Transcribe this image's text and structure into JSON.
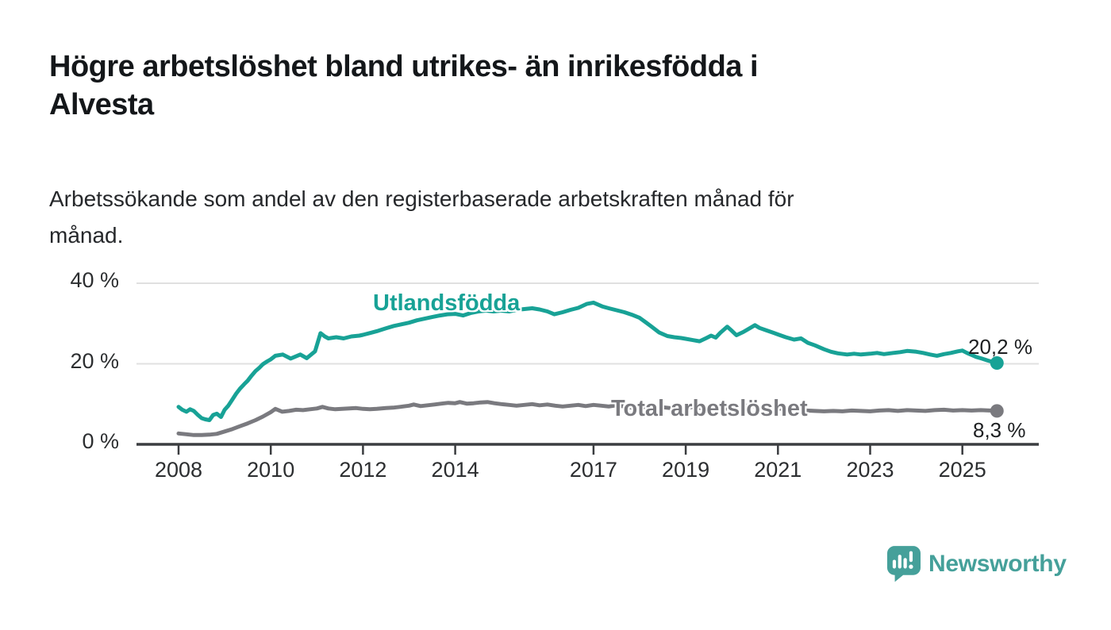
{
  "header": {
    "title": "Högre arbetslöshet bland utrikes- än inrikesfödda i\nAlvesta",
    "subtitle": "Arbetssökande som andel av den registerbaserade arbetskraften månad för\nmånad."
  },
  "colors": {
    "accent_teal": "#18a296",
    "series_gray": "#7a7a7f",
    "grid": "#e0e0e0",
    "axis": "#3b3d40",
    "tick_text": "#2c2e30",
    "label_text": "#1d1f21",
    "logo_teal": "#45a09a"
  },
  "chart_data": {
    "type": "line",
    "title": "Högre arbetslöshet bland utrikes- än inrikesfödda i Alvesta",
    "subtitle": "Arbetssökande som andel av den registerbaserade arbetskraften månad för månad.",
    "xlabel": "",
    "ylabel": "",
    "ylim": [
      0,
      40
    ],
    "xlim": [
      2007.1,
      2026.6
    ],
    "grid": "horizontal",
    "legend_position": "inline-labels",
    "x_ticks": [
      {
        "value": 2008,
        "label": "2008"
      },
      {
        "value": 2010,
        "label": "2010"
      },
      {
        "value": 2012,
        "label": "2012"
      },
      {
        "value": 2014,
        "label": "2014"
      },
      {
        "value": 2017,
        "label": "2017"
      },
      {
        "value": 2019,
        "label": "2019"
      },
      {
        "value": 2021,
        "label": "2021"
      },
      {
        "value": 2023,
        "label": "2023"
      },
      {
        "value": 2025,
        "label": "2025"
      }
    ],
    "y_ticks": [
      {
        "value": 0,
        "label": "0 %"
      },
      {
        "value": 20,
        "label": "20 %"
      },
      {
        "value": 40,
        "label": "40 %"
      }
    ],
    "series": [
      {
        "name": "Utlandsfödda",
        "color": "#18a296",
        "end_label": "20,2 %",
        "end_value": 20.2,
        "points": [
          [
            2008.0,
            9.3
          ],
          [
            2008.08,
            8.6
          ],
          [
            2008.17,
            8.1
          ],
          [
            2008.25,
            8.7
          ],
          [
            2008.33,
            8.3
          ],
          [
            2008.42,
            7.3
          ],
          [
            2008.5,
            6.5
          ],
          [
            2008.58,
            6.2
          ],
          [
            2008.67,
            6.0
          ],
          [
            2008.75,
            7.3
          ],
          [
            2008.83,
            7.6
          ],
          [
            2008.92,
            6.8
          ],
          [
            2009.0,
            8.6
          ],
          [
            2009.08,
            9.6
          ],
          [
            2009.17,
            11.2
          ],
          [
            2009.25,
            12.6
          ],
          [
            2009.33,
            13.8
          ],
          [
            2009.42,
            14.9
          ],
          [
            2009.5,
            15.8
          ],
          [
            2009.58,
            17.0
          ],
          [
            2009.67,
            18.2
          ],
          [
            2009.75,
            19.0
          ],
          [
            2009.83,
            19.9
          ],
          [
            2009.92,
            20.6
          ],
          [
            2010.0,
            21.1
          ],
          [
            2010.1,
            22.0
          ],
          [
            2010.26,
            22.3
          ],
          [
            2010.43,
            21.3
          ],
          [
            2010.64,
            22.3
          ],
          [
            2010.78,
            21.4
          ],
          [
            2010.96,
            23.1
          ],
          [
            2011.08,
            27.6
          ],
          [
            2011.17,
            26.8
          ],
          [
            2011.25,
            26.3
          ],
          [
            2011.42,
            26.6
          ],
          [
            2011.58,
            26.3
          ],
          [
            2011.75,
            26.8
          ],
          [
            2011.92,
            27.0
          ],
          [
            2012.0,
            27.2
          ],
          [
            2012.17,
            27.7
          ],
          [
            2012.33,
            28.2
          ],
          [
            2012.5,
            28.8
          ],
          [
            2012.67,
            29.4
          ],
          [
            2012.83,
            29.8
          ],
          [
            2013.0,
            30.2
          ],
          [
            2013.17,
            30.8
          ],
          [
            2013.33,
            31.2
          ],
          [
            2013.5,
            31.6
          ],
          [
            2013.67,
            32.0
          ],
          [
            2013.83,
            32.3
          ],
          [
            2014.0,
            32.4
          ],
          [
            2014.17,
            32.0
          ],
          [
            2014.33,
            32.6
          ],
          [
            2014.5,
            33.0
          ],
          [
            2014.67,
            33.2
          ],
          [
            2014.83,
            33.0
          ],
          [
            2015.0,
            33.2
          ],
          [
            2015.17,
            33.0
          ],
          [
            2015.33,
            33.4
          ],
          [
            2015.5,
            33.6
          ],
          [
            2015.67,
            33.8
          ],
          [
            2015.83,
            33.5
          ],
          [
            2016.0,
            33.0
          ],
          [
            2016.15,
            32.3
          ],
          [
            2016.33,
            32.8
          ],
          [
            2016.5,
            33.4
          ],
          [
            2016.67,
            33.9
          ],
          [
            2016.86,
            34.9
          ],
          [
            2017.0,
            35.2
          ],
          [
            2017.1,
            34.7
          ],
          [
            2017.2,
            34.2
          ],
          [
            2017.33,
            33.8
          ],
          [
            2017.5,
            33.3
          ],
          [
            2017.67,
            32.8
          ],
          [
            2017.83,
            32.2
          ],
          [
            2018.0,
            31.4
          ],
          [
            2018.12,
            30.4
          ],
          [
            2018.25,
            29.3
          ],
          [
            2018.42,
            27.8
          ],
          [
            2018.6,
            26.9
          ],
          [
            2018.75,
            26.6
          ],
          [
            2018.9,
            26.4
          ],
          [
            2019.0,
            26.2
          ],
          [
            2019.15,
            25.9
          ],
          [
            2019.3,
            25.6
          ],
          [
            2019.45,
            26.4
          ],
          [
            2019.55,
            27.0
          ],
          [
            2019.65,
            26.5
          ],
          [
            2019.75,
            27.7
          ],
          [
            2019.9,
            29.2
          ],
          [
            2020.0,
            28.2
          ],
          [
            2020.1,
            27.1
          ],
          [
            2020.25,
            27.9
          ],
          [
            2020.4,
            28.9
          ],
          [
            2020.5,
            29.6
          ],
          [
            2020.6,
            28.9
          ],
          [
            2020.75,
            28.3
          ],
          [
            2020.9,
            27.7
          ],
          [
            2021.0,
            27.3
          ],
          [
            2021.17,
            26.6
          ],
          [
            2021.35,
            26.0
          ],
          [
            2021.5,
            26.3
          ],
          [
            2021.65,
            25.2
          ],
          [
            2021.8,
            24.6
          ],
          [
            2022.0,
            23.6
          ],
          [
            2022.15,
            23.0
          ],
          [
            2022.3,
            22.6
          ],
          [
            2022.5,
            22.3
          ],
          [
            2022.65,
            22.5
          ],
          [
            2022.8,
            22.3
          ],
          [
            2023.0,
            22.5
          ],
          [
            2023.15,
            22.7
          ],
          [
            2023.3,
            22.4
          ],
          [
            2023.5,
            22.7
          ],
          [
            2023.65,
            22.9
          ],
          [
            2023.8,
            23.2
          ],
          [
            2024.0,
            23.0
          ],
          [
            2024.15,
            22.7
          ],
          [
            2024.3,
            22.3
          ],
          [
            2024.45,
            22.0
          ],
          [
            2024.6,
            22.4
          ],
          [
            2024.75,
            22.7
          ],
          [
            2024.9,
            23.1
          ],
          [
            2025.0,
            23.3
          ],
          [
            2025.1,
            22.7
          ],
          [
            2025.2,
            22.2
          ],
          [
            2025.3,
            21.7
          ],
          [
            2025.42,
            21.3
          ],
          [
            2025.55,
            20.8
          ],
          [
            2025.65,
            20.5
          ],
          [
            2025.75,
            20.2
          ]
        ]
      },
      {
        "name": "Total arbetslöshet",
        "color": "#7a7a7f",
        "end_label": "8,3 %",
        "end_value": 8.3,
        "points": [
          [
            2008.0,
            2.7
          ],
          [
            2008.17,
            2.5
          ],
          [
            2008.33,
            2.3
          ],
          [
            2008.5,
            2.3
          ],
          [
            2008.67,
            2.4
          ],
          [
            2008.83,
            2.6
          ],
          [
            2009.0,
            3.2
          ],
          [
            2009.17,
            3.8
          ],
          [
            2009.33,
            4.5
          ],
          [
            2009.5,
            5.2
          ],
          [
            2009.67,
            6.0
          ],
          [
            2009.83,
            6.9
          ],
          [
            2010.0,
            8.0
          ],
          [
            2010.1,
            8.8
          ],
          [
            2010.25,
            8.1
          ],
          [
            2010.4,
            8.3
          ],
          [
            2010.55,
            8.6
          ],
          [
            2010.7,
            8.5
          ],
          [
            2010.85,
            8.7
          ],
          [
            2011.0,
            8.9
          ],
          [
            2011.12,
            9.3
          ],
          [
            2011.25,
            8.9
          ],
          [
            2011.4,
            8.7
          ],
          [
            2011.55,
            8.8
          ],
          [
            2011.7,
            8.9
          ],
          [
            2011.85,
            9.0
          ],
          [
            2012.0,
            8.8
          ],
          [
            2012.15,
            8.7
          ],
          [
            2012.3,
            8.8
          ],
          [
            2012.5,
            9.0
          ],
          [
            2012.65,
            9.1
          ],
          [
            2012.8,
            9.3
          ],
          [
            2013.0,
            9.6
          ],
          [
            2013.1,
            9.9
          ],
          [
            2013.25,
            9.5
          ],
          [
            2013.4,
            9.7
          ],
          [
            2013.55,
            9.9
          ],
          [
            2013.7,
            10.1
          ],
          [
            2013.85,
            10.3
          ],
          [
            2014.0,
            10.2
          ],
          [
            2014.1,
            10.5
          ],
          [
            2014.25,
            10.1
          ],
          [
            2014.4,
            10.2
          ],
          [
            2014.55,
            10.4
          ],
          [
            2014.7,
            10.5
          ],
          [
            2014.85,
            10.2
          ],
          [
            2015.0,
            10.0
          ],
          [
            2015.17,
            9.8
          ],
          [
            2015.33,
            9.6
          ],
          [
            2015.5,
            9.8
          ],
          [
            2015.67,
            10.0
          ],
          [
            2015.83,
            9.7
          ],
          [
            2016.0,
            9.9
          ],
          [
            2016.17,
            9.6
          ],
          [
            2016.33,
            9.4
          ],
          [
            2016.5,
            9.6
          ],
          [
            2016.67,
            9.8
          ],
          [
            2016.83,
            9.5
          ],
          [
            2017.0,
            9.8
          ],
          [
            2017.17,
            9.6
          ],
          [
            2017.33,
            9.4
          ],
          [
            2017.5,
            9.7
          ],
          [
            2017.67,
            9.4
          ],
          [
            2017.83,
            9.1
          ],
          [
            2018.0,
            9.4
          ],
          [
            2018.17,
            9.1
          ],
          [
            2018.33,
            8.9
          ],
          [
            2018.5,
            9.2
          ],
          [
            2018.67,
            9.0
          ],
          [
            2018.83,
            8.8
          ],
          [
            2019.0,
            9.0
          ],
          [
            2019.17,
            9.3
          ],
          [
            2019.33,
            9.0
          ],
          [
            2019.5,
            9.2
          ],
          [
            2019.67,
            8.9
          ],
          [
            2019.83,
            8.8
          ],
          [
            2020.0,
            9.1
          ],
          [
            2020.17,
            9.4
          ],
          [
            2020.33,
            9.6
          ],
          [
            2020.5,
            9.4
          ],
          [
            2020.67,
            9.2
          ],
          [
            2020.83,
            9.0
          ],
          [
            2021.0,
            8.9
          ],
          [
            2021.2,
            8.7
          ],
          [
            2021.4,
            8.5
          ],
          [
            2021.6,
            8.4
          ],
          [
            2021.8,
            8.3
          ],
          [
            2022.0,
            8.2
          ],
          [
            2022.2,
            8.3
          ],
          [
            2022.4,
            8.2
          ],
          [
            2022.6,
            8.4
          ],
          [
            2022.8,
            8.3
          ],
          [
            2023.0,
            8.2
          ],
          [
            2023.2,
            8.4
          ],
          [
            2023.4,
            8.5
          ],
          [
            2023.6,
            8.3
          ],
          [
            2023.8,
            8.5
          ],
          [
            2024.0,
            8.4
          ],
          [
            2024.2,
            8.3
          ],
          [
            2024.4,
            8.5
          ],
          [
            2024.6,
            8.6
          ],
          [
            2024.8,
            8.4
          ],
          [
            2025.0,
            8.5
          ],
          [
            2025.2,
            8.4
          ],
          [
            2025.4,
            8.5
          ],
          [
            2025.6,
            8.4
          ],
          [
            2025.75,
            8.3
          ]
        ]
      }
    ]
  },
  "footer": {
    "brand": "Newsworthy"
  }
}
